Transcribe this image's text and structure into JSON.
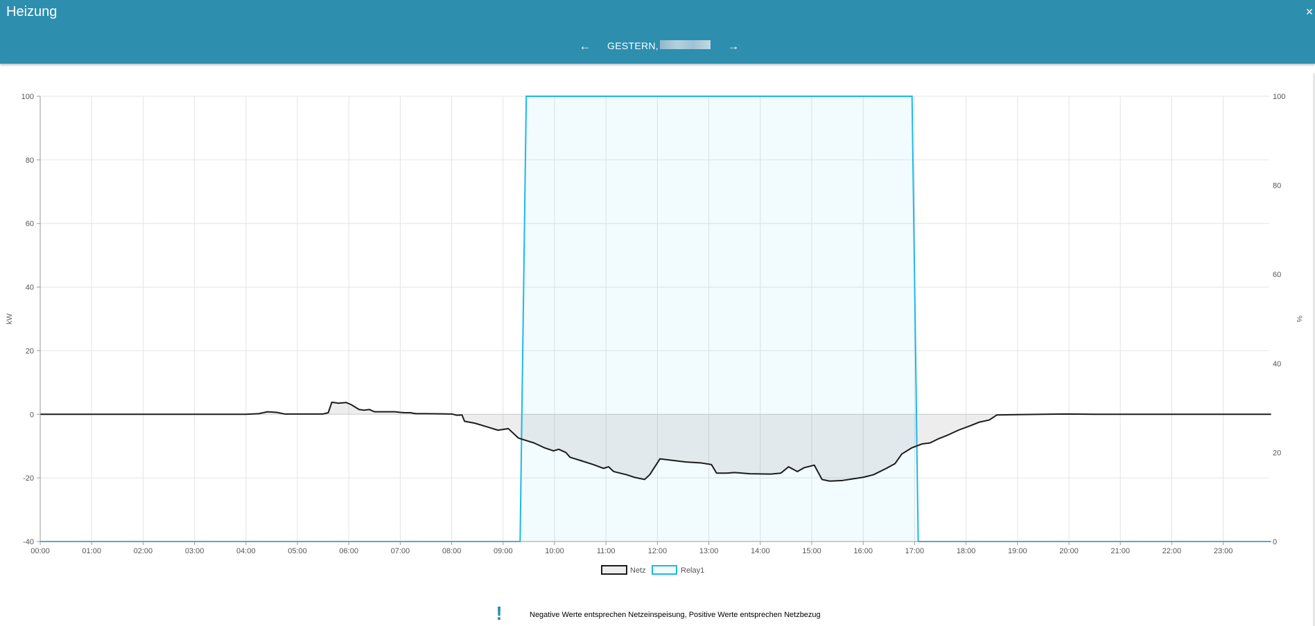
{
  "header": {
    "title": "Heizung",
    "close_label": "×",
    "nav": {
      "prev_label": "←",
      "next_label": "→",
      "date_label": "GESTERN,"
    }
  },
  "note": {
    "icon": "exclamation-icon",
    "icon_glyph": "!",
    "text": "Negative Werte entsprechen Netzeinspeisung, Positive Werte entsprechen Netzbezug"
  },
  "colors": {
    "header_bg": "#2d8eae",
    "netz_line": "#1a1a1a",
    "relay_line": "#1ab8ea"
  },
  "chart_data": {
    "type": "line",
    "x_ticks": [
      "00:00",
      "01:00",
      "02:00",
      "03:00",
      "04:00",
      "05:00",
      "06:00",
      "07:00",
      "08:00",
      "09:00",
      "10:00",
      "11:00",
      "12:00",
      "13:00",
      "14:00",
      "15:00",
      "16:00",
      "17:00",
      "18:00",
      "19:00",
      "20:00",
      "21:00",
      "22:00",
      "23:00"
    ],
    "x_range_hours": [
      0,
      23.93
    ],
    "y_left": {
      "label": "kW",
      "ticks": [
        100,
        80,
        60,
        40,
        20,
        0,
        -20,
        -40
      ],
      "range": [
        -40,
        100
      ]
    },
    "y_right": {
      "label": "%",
      "ticks": [
        100,
        80,
        60,
        40,
        20,
        0
      ],
      "range": [
        0,
        100
      ]
    },
    "grid": true,
    "legend": "bottom-center",
    "series": [
      {
        "name": "Netz",
        "axis": "left",
        "fill": "to-zero",
        "points": [
          [
            0,
            0
          ],
          [
            4.0,
            0
          ],
          [
            4.25,
            0.2
          ],
          [
            4.42,
            0.8
          ],
          [
            4.6,
            0.6
          ],
          [
            4.75,
            0.1
          ],
          [
            5.5,
            0.1
          ],
          [
            5.6,
            0.5
          ],
          [
            5.67,
            3.8
          ],
          [
            5.8,
            3.5
          ],
          [
            5.95,
            3.7
          ],
          [
            6.05,
            3.0
          ],
          [
            6.2,
            1.5
          ],
          [
            6.3,
            1.3
          ],
          [
            6.4,
            1.5
          ],
          [
            6.5,
            0.8
          ],
          [
            6.75,
            0.8
          ],
          [
            6.9,
            0.8
          ],
          [
            7.0,
            0.6
          ],
          [
            7.1,
            0.5
          ],
          [
            7.2,
            0.5
          ],
          [
            7.3,
            0.2
          ],
          [
            7.5,
            0.2
          ],
          [
            8.0,
            0.1
          ],
          [
            8.1,
            -0.3
          ],
          [
            8.2,
            -0.2
          ],
          [
            8.25,
            -2.2
          ],
          [
            8.45,
            -2.8
          ],
          [
            8.7,
            -4.0
          ],
          [
            8.9,
            -5.0
          ],
          [
            9.1,
            -4.5
          ],
          [
            9.3,
            -7.5
          ],
          [
            9.6,
            -9.0
          ],
          [
            9.8,
            -10.5
          ],
          [
            9.98,
            -11.5
          ],
          [
            10.08,
            -11.0
          ],
          [
            10.22,
            -12.0
          ],
          [
            10.3,
            -13.5
          ],
          [
            10.5,
            -14.5
          ],
          [
            10.75,
            -15.8
          ],
          [
            10.95,
            -17.0
          ],
          [
            11.05,
            -16.5
          ],
          [
            11.15,
            -18.0
          ],
          [
            11.4,
            -19.0
          ],
          [
            11.55,
            -19.8
          ],
          [
            11.75,
            -20.5
          ],
          [
            11.85,
            -19.0
          ],
          [
            12.05,
            -14.0
          ],
          [
            12.3,
            -14.5
          ],
          [
            12.55,
            -15.0
          ],
          [
            12.85,
            -15.3
          ],
          [
            13.05,
            -15.8
          ],
          [
            13.15,
            -18.5
          ],
          [
            13.35,
            -18.5
          ],
          [
            13.5,
            -18.3
          ],
          [
            13.8,
            -18.7
          ],
          [
            14.2,
            -18.8
          ],
          [
            14.4,
            -18.5
          ],
          [
            14.55,
            -16.5
          ],
          [
            14.72,
            -18.0
          ],
          [
            14.85,
            -16.8
          ],
          [
            15.05,
            -16.0
          ],
          [
            15.2,
            -20.5
          ],
          [
            15.35,
            -21.0
          ],
          [
            15.6,
            -20.8
          ],
          [
            15.8,
            -20.3
          ],
          [
            16.0,
            -19.8
          ],
          [
            16.2,
            -19.0
          ],
          [
            16.45,
            -17.0
          ],
          [
            16.62,
            -15.5
          ],
          [
            16.75,
            -12.5
          ],
          [
            16.95,
            -10.5
          ],
          [
            17.15,
            -9.3
          ],
          [
            17.3,
            -9.0
          ],
          [
            17.45,
            -7.8
          ],
          [
            17.65,
            -6.5
          ],
          [
            17.85,
            -5.0
          ],
          [
            18.1,
            -3.5
          ],
          [
            18.25,
            -2.5
          ],
          [
            18.45,
            -1.8
          ],
          [
            18.6,
            -0.2
          ],
          [
            19.0,
            -0.1
          ],
          [
            19.5,
            0.0
          ],
          [
            20.0,
            0.1
          ],
          [
            20.5,
            0.0
          ],
          [
            21.0,
            0.0
          ],
          [
            22.0,
            0.0
          ],
          [
            23.0,
            0.0
          ],
          [
            23.93,
            0.0
          ]
        ]
      },
      {
        "name": "Relay1",
        "axis": "right",
        "fill": "to-zero",
        "points": [
          [
            0,
            0
          ],
          [
            9.33,
            0
          ],
          [
            9.45,
            100
          ],
          [
            16.95,
            100
          ],
          [
            17.07,
            0
          ],
          [
            23.93,
            0
          ]
        ]
      }
    ]
  }
}
